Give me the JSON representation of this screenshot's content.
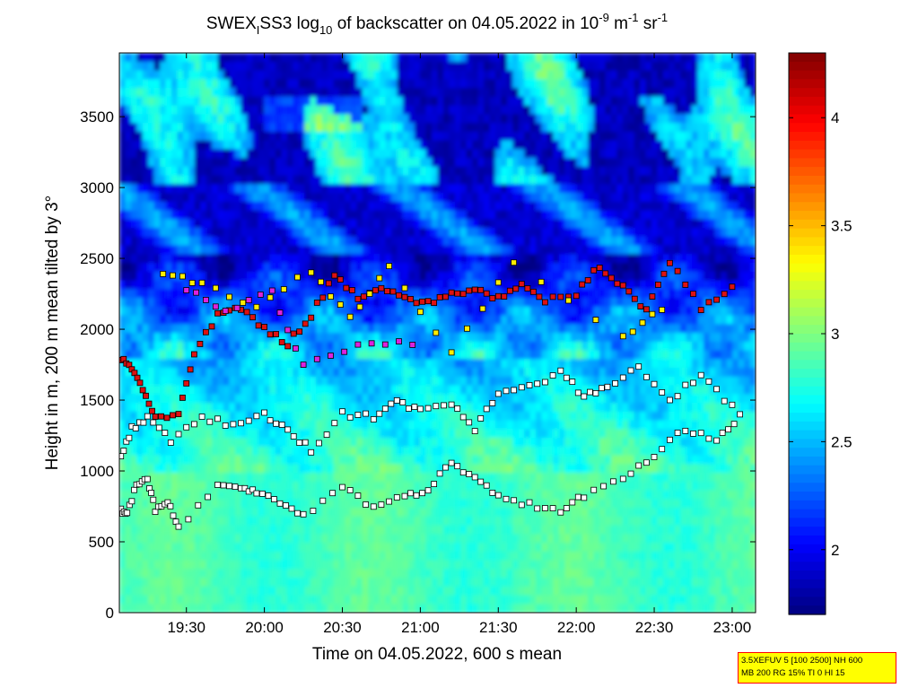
{
  "chart_data": {
    "type": "heatmap",
    "title": {
      "station": "SWEX",
      "station_sub": "I",
      "rest1": "SS3 log",
      "log_sub": "10",
      "rest2": " of backscatter on 04.05.2022 in 10",
      "exp1": "-9",
      "unit_m": " m",
      "exp2": "-1",
      "unit_sr": " sr",
      "exp3": "-1"
    },
    "xlabel": "Time on 04.05.2022, 600 s mean",
    "ylabel": "Height in m, 200 m mean tilted by 3°",
    "x_ticks": [
      "19:30",
      "20:00",
      "20:30",
      "21:00",
      "21:30",
      "22:00",
      "22:30",
      "23:00"
    ],
    "x_tick_hours": [
      19.5,
      20.0,
      20.5,
      21.0,
      21.5,
      22.0,
      22.5,
      23.0
    ],
    "xlim_hours": [
      19.07,
      23.15
    ],
    "y_ticks": [
      "0",
      "500",
      "1000",
      "1500",
      "2000",
      "2500",
      "3000",
      "3500"
    ],
    "y_tick_values": [
      0,
      500,
      1000,
      1500,
      2000,
      2500,
      3000,
      3500
    ],
    "ylim": [
      0,
      3950
    ],
    "colorbar": {
      "ticks": [
        "2",
        "2.5",
        "3",
        "3.5",
        "4"
      ],
      "tick_values": [
        2,
        2.5,
        3,
        3.5,
        4
      ],
      "range": [
        1.7,
        4.3
      ],
      "colormap": "jet"
    },
    "field_description_levels": {
      "surface_0_1000": 2.85,
      "mid_1000_1800": 2.6,
      "dark_band_1800_2500": 1.9,
      "upper_3000_3950": 2.4
    },
    "layer_markers": [
      {
        "segment": "lowest-layer",
        "color": "#ffffff",
        "points": [
          [
            19.08,
            720
          ],
          [
            19.12,
            710
          ],
          [
            19.18,
            900
          ],
          [
            19.25,
            950
          ],
          [
            19.3,
            730
          ],
          [
            19.38,
            780
          ],
          [
            19.45,
            600
          ],
          [
            19.7,
            900
          ],
          [
            19.85,
            870
          ],
          [
            19.95,
            860
          ],
          [
            20.1,
            790
          ],
          [
            20.25,
            680
          ],
          [
            20.5,
            900
          ],
          [
            20.7,
            740
          ],
          [
            20.9,
            820
          ],
          [
            21.05,
            870
          ],
          [
            21.2,
            1060
          ],
          [
            21.35,
            950
          ],
          [
            21.5,
            830
          ],
          [
            21.7,
            760
          ],
          [
            21.9,
            710
          ],
          [
            22.05,
            830
          ],
          [
            22.3,
            950
          ],
          [
            22.5,
            1100
          ],
          [
            22.7,
            1300
          ],
          [
            22.9,
            1230
          ],
          [
            23.05,
            1380
          ]
        ]
      },
      {
        "segment": "mid-layer",
        "color": "#ffffff",
        "points": [
          [
            19.08,
            1100
          ],
          [
            19.15,
            1300
          ],
          [
            19.25,
            1370
          ],
          [
            19.4,
            1210
          ],
          [
            19.6,
            1380
          ],
          [
            19.8,
            1320
          ],
          [
            20.0,
            1400
          ],
          [
            20.15,
            1280
          ],
          [
            20.3,
            1150
          ],
          [
            20.5,
            1400
          ],
          [
            20.7,
            1380
          ],
          [
            20.85,
            1500
          ],
          [
            21.0,
            1420
          ],
          [
            21.2,
            1480
          ],
          [
            21.35,
            1300
          ],
          [
            21.5,
            1560
          ],
          [
            21.7,
            1590
          ],
          [
            21.9,
            1700
          ],
          [
            22.05,
            1520
          ],
          [
            22.2,
            1600
          ],
          [
            22.4,
            1720
          ],
          [
            22.6,
            1500
          ],
          [
            22.8,
            1680
          ],
          [
            23.0,
            1450
          ]
        ]
      },
      {
        "segment": "upper-layer",
        "color": "#dd1111",
        "points": [
          [
            19.08,
            1790
          ],
          [
            19.15,
            1720
          ],
          [
            19.22,
            1580
          ],
          [
            19.3,
            1380
          ],
          [
            19.45,
            1400
          ],
          [
            19.55,
            1820
          ],
          [
            19.7,
            2100
          ],
          [
            19.85,
            2150
          ],
          [
            20.0,
            2000
          ],
          [
            20.15,
            1900
          ],
          [
            20.3,
            2100
          ],
          [
            20.45,
            2380
          ],
          [
            20.6,
            2230
          ],
          [
            20.75,
            2300
          ],
          [
            20.9,
            2220
          ],
          [
            21.05,
            2180
          ],
          [
            21.2,
            2250
          ],
          [
            21.35,
            2280
          ],
          [
            21.5,
            2220
          ],
          [
            21.65,
            2300
          ],
          [
            21.8,
            2200
          ],
          [
            22.0,
            2250
          ],
          [
            22.15,
            2450
          ],
          [
            22.3,
            2300
          ],
          [
            22.45,
            2140
          ],
          [
            22.6,
            2480
          ],
          [
            22.8,
            2150
          ],
          [
            23.0,
            2300
          ]
        ]
      },
      {
        "segment": "scattered-yellow",
        "color": "#ffee00",
        "points": [
          [
            19.35,
            2380
          ],
          [
            19.6,
            2330
          ],
          [
            19.95,
            2150
          ],
          [
            20.3,
            2420
          ],
          [
            20.55,
            2080
          ],
          [
            20.8,
            2450
          ],
          [
            21.2,
            1820
          ],
          [
            21.6,
            2480
          ],
          [
            22.3,
            1950
          ],
          [
            22.55,
            2140
          ]
        ]
      },
      {
        "segment": "scattered-magenta",
        "color": "#dd22dd",
        "points": [
          [
            19.5,
            2280
          ],
          [
            19.75,
            2120
          ],
          [
            20.05,
            2260
          ],
          [
            20.25,
            1750
          ],
          [
            20.6,
            1880
          ],
          [
            20.95,
            1900
          ]
        ]
      }
    ]
  },
  "param_box": {
    "line1": "3.5XEFUV 5 [100 2500] NH 600",
    "line2": "MB 200 RG 15% TI 0 HI 15"
  }
}
